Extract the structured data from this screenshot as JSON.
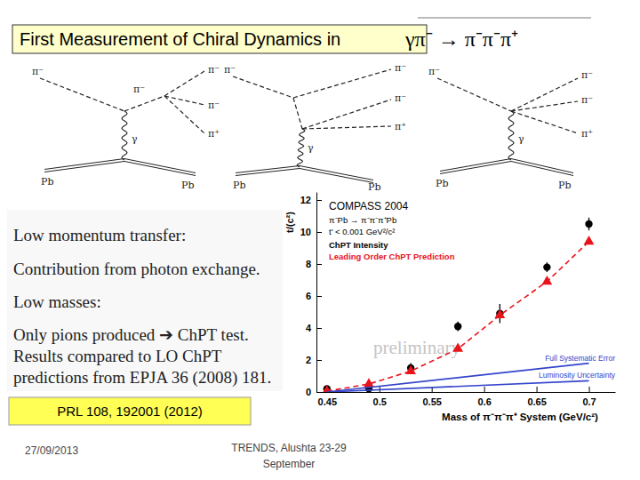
{
  "slide": {
    "title": "First Measurement of Chiral Dynamics in",
    "reaction": "γπ⁻ → π⁻π⁻π⁺",
    "diagrams": [
      {
        "labels": [
          "π⁻",
          "π⁻",
          "π⁻",
          "π⁻",
          "π⁺",
          "γ",
          "Pb",
          "Pb"
        ]
      },
      {
        "labels": [
          "π⁻",
          "π⁻",
          "π⁻",
          "π⁺",
          "γ",
          "Pb",
          "Pb"
        ]
      },
      {
        "labels": [
          "π⁻",
          "π⁻",
          "π⁻",
          "π⁺",
          "γ",
          "Pb",
          "Pb"
        ]
      }
    ],
    "text": [
      "Low momentum transfer:",
      "Contribution from photon exchange.",
      "Low masses:",
      "Only pions produced ➔ ChPT test.",
      "Results compared to LO ChPT",
      "predictions from EPJA 36 (2008) 181."
    ],
    "reference": "PRL 108, 192001 (2012)",
    "date": "27/09/2013",
    "event": [
      "TRENDS, Alushta 23-29",
      "September"
    ]
  },
  "chart_data": {
    "type": "scatter",
    "title": "COMPASS 2004",
    "subtitle": "π⁻Pb → π⁻π⁻π⁺Pb",
    "annotations": [
      "t' < 0.001 GeV²/c²",
      "preliminary"
    ],
    "x_label": "Mass of π⁻π⁻π⁺ System (GeV/c²)",
    "y_label": "t/(c²)",
    "xlim": [
      0.44,
      0.725
    ],
    "xticks": [
      0.45,
      0.5,
      0.55,
      0.6,
      0.65,
      0.7
    ],
    "ylim": [
      0,
      12.5
    ],
    "yticks": [
      0,
      2,
      4,
      6,
      8,
      10,
      12
    ],
    "grid": false,
    "series": [
      {
        "name": "ChPT Intensity",
        "type": "scatter",
        "marker": "circle",
        "color": "#000000",
        "x": [
          0.45,
          0.49,
          0.53,
          0.575,
          0.615,
          0.66,
          0.7
        ],
        "values": [
          0.2,
          0.2,
          1.5,
          4.1,
          4.9,
          7.8,
          10.5
        ],
        "errors": [
          0.1,
          0.1,
          0.3,
          0.3,
          0.6,
          0.3,
          0.4
        ]
      },
      {
        "name": "Leading Order ChPT Prediction",
        "type": "line",
        "marker": "triangle",
        "line_style": "dashed",
        "color": "#e8141b",
        "x": [
          0.45,
          0.49,
          0.53,
          0.575,
          0.615,
          0.66,
          0.7
        ],
        "values": [
          0.05,
          0.5,
          1.3,
          2.7,
          4.8,
          6.9,
          9.4
        ]
      },
      {
        "name": "Full Systematic Error",
        "type": "line",
        "line_style": "solid",
        "color": "#3344cc",
        "x": [
          0.45,
          0.7
        ],
        "values": [
          0,
          1.8
        ]
      },
      {
        "name": "Luminosity Uncertainty",
        "type": "line",
        "line_style": "solid",
        "color": "#3344cc",
        "x": [
          0.45,
          0.7
        ],
        "values": [
          0,
          0.7
        ]
      }
    ]
  }
}
